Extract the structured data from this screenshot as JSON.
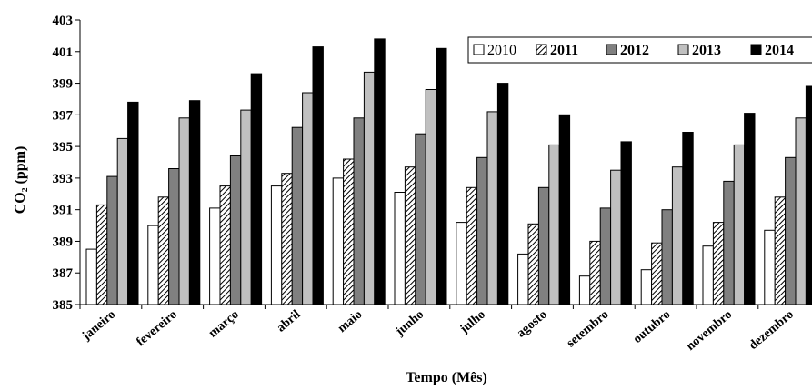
{
  "chart_data": {
    "type": "bar",
    "ylabel": "CO₂ (ppm)",
    "xlabel": "Tempo (Mês)",
    "ylim": [
      385,
      403
    ],
    "yticks": [
      385,
      387,
      389,
      391,
      393,
      395,
      397,
      399,
      401,
      403
    ],
    "grid": false,
    "legend_position": "top-right",
    "categories": [
      "janeiro",
      "fevereiro",
      "março",
      "abril",
      "maio",
      "junho",
      "julho",
      "agosto",
      "setembro",
      "outubro",
      "novembro",
      "dezembro"
    ],
    "series": [
      {
        "name": "2010",
        "style": "white",
        "values": [
          388.5,
          390.0,
          391.1,
          392.5,
          393.0,
          392.1,
          390.2,
          388.2,
          386.8,
          387.2,
          388.7,
          389.7
        ]
      },
      {
        "name": "2011",
        "style": "hatched",
        "values": [
          391.3,
          391.8,
          392.5,
          393.3,
          394.2,
          393.7,
          392.4,
          390.1,
          389.0,
          388.9,
          390.2,
          391.8
        ]
      },
      {
        "name": "2012",
        "style": "darkgray",
        "values": [
          393.1,
          393.6,
          394.4,
          396.2,
          396.8,
          395.8,
          394.3,
          392.4,
          391.1,
          391.0,
          392.8,
          394.3
        ]
      },
      {
        "name": "2013",
        "style": "lightgray",
        "values": [
          395.5,
          396.8,
          397.3,
          398.4,
          399.7,
          398.6,
          397.2,
          395.1,
          393.5,
          393.7,
          395.1,
          396.8
        ]
      },
      {
        "name": "2014",
        "style": "black",
        "values": [
          397.8,
          397.9,
          399.6,
          401.3,
          401.8,
          401.2,
          399.0,
          397.0,
          395.3,
          395.9,
          397.1,
          398.8
        ]
      }
    ]
  }
}
